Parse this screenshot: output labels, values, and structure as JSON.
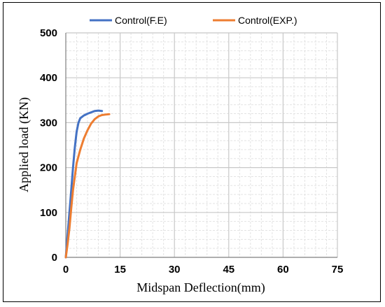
{
  "chart_data": {
    "type": "line",
    "xlabel": "Midspan Deflection(mm)",
    "ylabel": "Applied load (KN)",
    "xlim": [
      0,
      75
    ],
    "ylim": [
      0,
      500
    ],
    "x_ticks": [
      0,
      15,
      30,
      45,
      60,
      75
    ],
    "y_ticks": [
      0,
      100,
      200,
      300,
      400,
      500
    ],
    "minor_x_step": 3,
    "minor_y_step": 20,
    "grid": true,
    "legend_position": "top",
    "series": [
      {
        "name": "Control(F.E)",
        "color": "#4472C4",
        "x": [
          0,
          0.5,
          1.0,
          1.5,
          2.0,
          2.5,
          3.0,
          3.5,
          4.0,
          5.0,
          6.0,
          7.0,
          8.0,
          9.0,
          10.0
        ],
        "y": [
          0,
          50,
          100,
          150,
          200,
          245,
          280,
          300,
          310,
          316,
          320,
          323,
          326,
          327,
          326
        ]
      },
      {
        "name": "Control(EXP.)",
        "color": "#ED7D31",
        "x": [
          0,
          0.5,
          1.0,
          1.5,
          2.0,
          2.5,
          3.0,
          4.0,
          5.0,
          6.0,
          7.0,
          8.0,
          9.0,
          10.0,
          11.0,
          12.0
        ],
        "y": [
          0,
          30,
          65,
          110,
          150,
          180,
          210,
          240,
          265,
          283,
          298,
          308,
          314,
          317,
          318,
          319
        ]
      }
    ]
  }
}
